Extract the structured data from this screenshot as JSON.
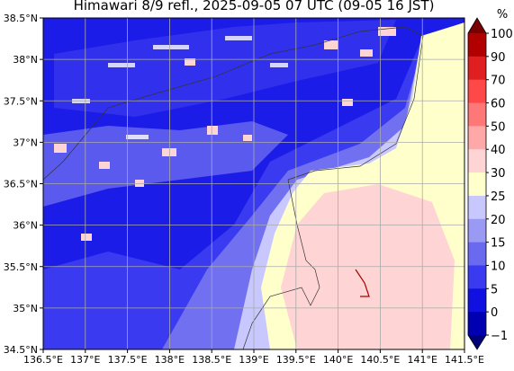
{
  "title": "Himawari 8/9 refl., 2025-09-05 07 UTC (09-05 16 JST)",
  "x_ticks": [
    "136.5°E",
    "137°E",
    "137.5°E",
    "138°E",
    "138.5°E",
    "139°E",
    "139.5°E",
    "140°E",
    "140.5°E",
    "141°E",
    "141.5°E"
  ],
  "y_ticks": [
    "38.5°N",
    "38°N",
    "37.5°N",
    "37°N",
    "36.5°N",
    "36°N",
    "35.5°N",
    "35°N",
    "34.5°N"
  ],
  "colorbar": {
    "unit": "%",
    "labels": [
      "100",
      "90",
      "70",
      "60",
      "50",
      "40",
      "30",
      "25",
      "20",
      "15",
      "10",
      "5",
      "0",
      "−1"
    ],
    "colors": [
      "#7a0000",
      "#b00000",
      "#e02020",
      "#ff4848",
      "#ff7878",
      "#ffa8a8",
      "#ffd4d4",
      "#ffffcc",
      "#c8c8ff",
      "#9a9af4",
      "#6a6af0",
      "#3a3af0",
      "#1010e0",
      "#0000b0",
      "#000078"
    ]
  }
}
